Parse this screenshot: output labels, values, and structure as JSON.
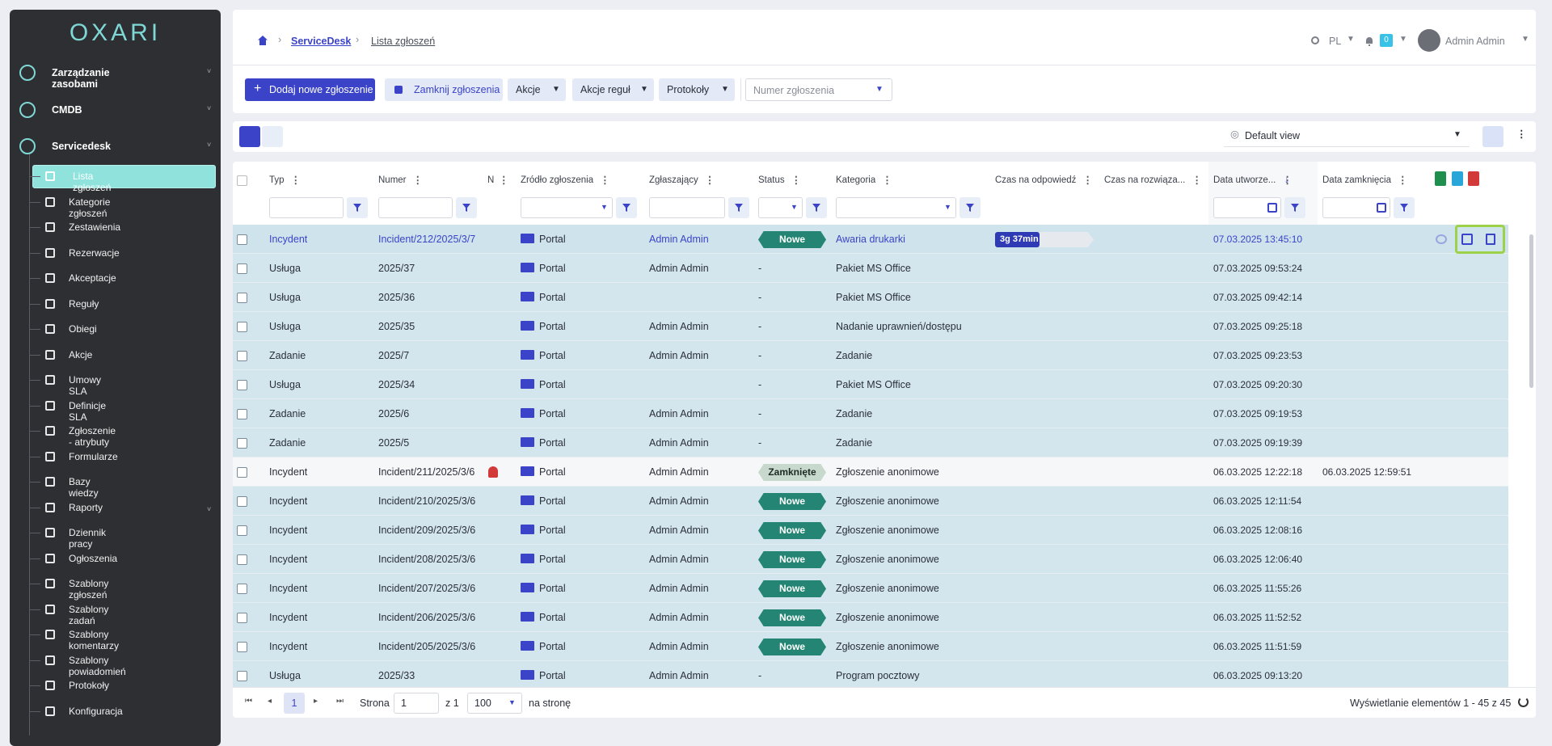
{
  "sidebar": {
    "logo": "OXARI",
    "sections": [
      "Zarządzanie zasobami",
      "CMDB",
      "Servicedesk"
    ],
    "items": [
      "Lista zgłoszeń",
      "Kategorie zgłoszeń",
      "Zestawienia",
      "Rezerwacje",
      "Akceptacje",
      "Reguły",
      "Obiegi",
      "Akcje",
      "Umowy SLA",
      "Definicje SLA",
      "Zgłoszenie - atrybuty",
      "Formularze",
      "Bazy wiedzy",
      "Raporty",
      "Dziennik pracy",
      "Ogłoszenia",
      "Szablony zgłoszeń",
      "Szablony zadań",
      "Szablony komentarzy",
      "Szablony powiadomień",
      "Protokoły",
      "Konfiguracja"
    ]
  },
  "header": {
    "breadcrumb": [
      "ServiceDesk",
      "Lista zgłoszeń"
    ],
    "language": "PL",
    "notifications": "0",
    "user": "Admin Admin"
  },
  "toolbar": {
    "add": "Dodaj nowe zgłoszenie",
    "close": "Zamknij zgłoszenia",
    "dropdowns": [
      "Akcje",
      "Akcje reguł",
      "Protokoły"
    ],
    "search_placeholder": "Numer zgłoszenia"
  },
  "view": {
    "name": "Default view"
  },
  "table": {
    "columns": [
      "Typ",
      "Numer",
      "N",
      "Źródło zgłoszenia",
      "Zgłaszający",
      "Status",
      "Kategoria",
      "Czas na odpowiedź",
      "Czas na rozwiąza...",
      "Data utworze...",
      "Data zamknięcia"
    ],
    "rows": [
      {
        "type": "Incydent",
        "number": "Incident/212/2025/3/7",
        "source": "Portal",
        "reporter": "Admin Admin",
        "status": "Nowe",
        "category": "Awaria drukarki",
        "response": "3g 37min",
        "created": "07.03.2025 13:45:10",
        "closed": null
      },
      {
        "type": "Usługa",
        "number": "2025/37",
        "source": "Portal",
        "reporter": "Admin Admin",
        "status": "-",
        "category": "Pakiet MS Office",
        "response": null,
        "created": "07.03.2025 09:53:24",
        "closed": null
      },
      {
        "type": "Usługa",
        "number": "2025/36",
        "source": "Portal",
        "reporter": null,
        "status": "-",
        "category": "Pakiet MS Office",
        "response": null,
        "created": "07.03.2025 09:42:14",
        "closed": null
      },
      {
        "type": "Usługa",
        "number": "2025/35",
        "source": "Portal",
        "reporter": "Admin Admin",
        "status": "-",
        "category": "Nadanie uprawnień/dostępu",
        "response": null,
        "created": "07.03.2025 09:25:18",
        "closed": null
      },
      {
        "type": "Zadanie",
        "number": "2025/7",
        "source": "Portal",
        "reporter": "Admin Admin",
        "status": "-",
        "category": "Zadanie",
        "response": null,
        "created": "07.03.2025 09:23:53",
        "closed": null
      },
      {
        "type": "Usługa",
        "number": "2025/34",
        "source": "Portal",
        "reporter": null,
        "status": "-",
        "category": "Pakiet MS Office",
        "response": null,
        "created": "07.03.2025 09:20:30",
        "closed": null
      },
      {
        "type": "Zadanie",
        "number": "2025/6",
        "source": "Portal",
        "reporter": "Admin Admin",
        "status": "-",
        "category": "Zadanie",
        "response": null,
        "created": "07.03.2025 09:19:53",
        "closed": null
      },
      {
        "type": "Zadanie",
        "number": "2025/5",
        "source": "Portal",
        "reporter": "Admin Admin",
        "status": "-",
        "category": "Zadanie",
        "response": null,
        "created": "07.03.2025 09:19:39",
        "closed": null
      },
      {
        "type": "Incydent",
        "number": "Incident/211/2025/3/6",
        "source": "Portal",
        "reporter": "Admin Admin",
        "status": "Zamknięte",
        "category": "Zgłoszenie anonimowe",
        "response": null,
        "created": "06.03.2025 12:22:18",
        "closed": "06.03.2025 12:59:51"
      },
      {
        "type": "Incydent",
        "number": "Incident/210/2025/3/6",
        "source": "Portal",
        "reporter": "Admin Admin",
        "status": "Nowe",
        "category": "Zgłoszenie anonimowe",
        "response": null,
        "created": "06.03.2025 12:11:54",
        "closed": null
      },
      {
        "type": "Incydent",
        "number": "Incident/209/2025/3/6",
        "source": "Portal",
        "reporter": "Admin Admin",
        "status": "Nowe",
        "category": "Zgłoszenie anonimowe",
        "response": null,
        "created": "06.03.2025 12:08:16",
        "closed": null
      },
      {
        "type": "Incydent",
        "number": "Incident/208/2025/3/6",
        "source": "Portal",
        "reporter": "Admin Admin",
        "status": "Nowe",
        "category": "Zgłoszenie anonimowe",
        "response": null,
        "created": "06.03.2025 12:06:40",
        "closed": null
      },
      {
        "type": "Incydent",
        "number": "Incident/207/2025/3/6",
        "source": "Portal",
        "reporter": "Admin Admin",
        "status": "Nowe",
        "category": "Zgłoszenie anonimowe",
        "response": null,
        "created": "06.03.2025 11:55:26",
        "closed": null
      },
      {
        "type": "Incydent",
        "number": "Incident/206/2025/3/6",
        "source": "Portal",
        "reporter": "Admin Admin",
        "status": "Nowe",
        "category": "Zgłoszenie anonimowe",
        "response": null,
        "created": "06.03.2025 11:52:52",
        "closed": null
      },
      {
        "type": "Incydent",
        "number": "Incident/205/2025/3/6",
        "source": "Portal",
        "reporter": "Admin Admin",
        "status": "Nowe",
        "category": "Zgłoszenie anonimowe",
        "response": null,
        "created": "06.03.2025 11:51:59",
        "closed": null
      },
      {
        "type": "Usługa",
        "number": "2025/33",
        "source": "Portal",
        "reporter": "Admin Admin",
        "status": "-",
        "category": "Program pocztowy",
        "response": null,
        "created": "06.03.2025 09:13:20",
        "closed": null
      }
    ]
  },
  "pagination": {
    "current": "1",
    "label_page": "Strona",
    "page_input": "1",
    "of": "z 1",
    "page_size": "100",
    "per_page": "na stronę",
    "summary": "Wyświetlanie elementów 1 - 45 z 45"
  }
}
